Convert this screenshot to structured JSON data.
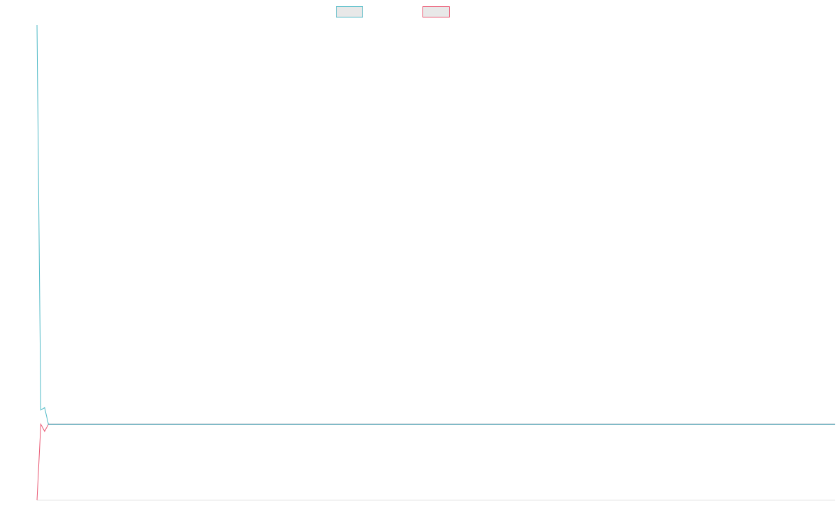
{
  "chart_data": {
    "type": "line",
    "title": "",
    "xlabel": "",
    "ylabel": "",
    "legend_position": "top-center",
    "grid": false,
    "x_count": 211,
    "ylim": [
      0,
      100
    ],
    "series": [
      {
        "color": "#4bb8c5",
        "values_head": [
          100,
          19,
          19.5,
          16
        ],
        "values_rest": 16
      },
      {
        "color": "#e8536f",
        "values_head": [
          0,
          16,
          14.5,
          16
        ],
        "values_rest": 16
      }
    ]
  }
}
